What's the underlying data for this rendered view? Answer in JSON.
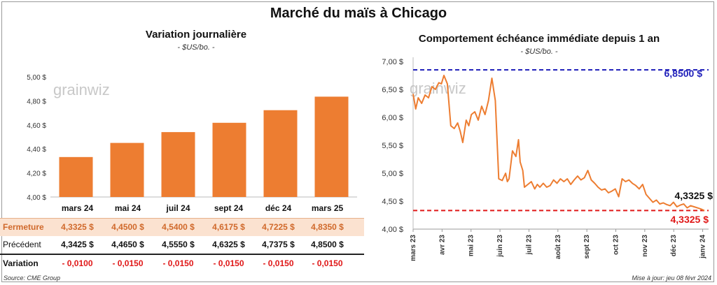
{
  "title": "Marché du maïs à Chicago",
  "left_chart": {
    "subtitle": "Variation  journalière",
    "unit": "- $US/bo. -",
    "watermark": "grainwiz"
  },
  "right_chart": {
    "subtitle": "Comportement  échéance immédiate depuis 1 an",
    "unit": "- $US/bo. -",
    "watermark": "grainwiz",
    "max_label": "6,8500 $",
    "last_label_upper": "4,3325 $",
    "last_label_lower": "4,3325 $"
  },
  "table": {
    "headers": [
      "mars 24",
      "mai 24",
      "juil 24",
      "sept 24",
      "déc 24",
      "mars 25"
    ],
    "rows": [
      {
        "label": "Fermeture",
        "values": [
          "4,3325  $",
          "4,4500  $",
          "4,5400  $",
          "4,6175  $",
          "4,7225  $",
          "4,8350  $"
        ]
      },
      {
        "label": "Précédent",
        "values": [
          "4,3425  $",
          "4,4650  $",
          "4,5550  $",
          "4,6325  $",
          "4,7375  $",
          "4,8500  $"
        ]
      },
      {
        "label": "Variation",
        "values": [
          "- 0,0100",
          "- 0,0150",
          "- 0,0150",
          "- 0,0150",
          "- 0,0150",
          "- 0,0150"
        ]
      }
    ]
  },
  "footer": {
    "source": "Source: CME Group",
    "update": "Mise à jour: jeu 08 févr 2024"
  },
  "colors": {
    "bar": "#ed7d31",
    "line": "#ed7d31",
    "max_line": "#2222bb",
    "last_line": "#e01818",
    "ferm_bg": "#fbe2d0"
  },
  "chart_data": [
    {
      "type": "bar",
      "title": "Variation  journalière",
      "ylabel": "- $US/bo. -",
      "categories": [
        "mars 24",
        "mai 24",
        "juil 24",
        "sept 24",
        "déc 24",
        "mars 25"
      ],
      "values": [
        4.3325,
        4.45,
        4.54,
        4.6175,
        4.7225,
        4.835
      ],
      "ylim": [
        4.0,
        5.0
      ],
      "yticks": [
        "4,00 $",
        "4,20 $",
        "4,40 $",
        "4,60 $",
        "4,80 $",
        "5,00 $"
      ],
      "grid": false
    },
    {
      "type": "line",
      "title": "Comportement  échéance immédiate depuis 1 an",
      "ylabel": "- $US/bo. -",
      "ylim": [
        4.0,
        7.0
      ],
      "yticks": [
        "4,00 $",
        "4,50 $",
        "5,00 $",
        "5,50 $",
        "6,00 $",
        "6,50 $",
        "7,00 $"
      ],
      "xticks": [
        "mars 23",
        "avr 23",
        "mai 23",
        "juin 23",
        "juil 23",
        "août 23",
        "sept 23",
        "oct 23",
        "nov 23",
        "déc 23",
        "janv 24"
      ],
      "xlim": [
        0,
        345
      ],
      "x": [
        0,
        3,
        6,
        10,
        14,
        18,
        22,
        26,
        30,
        33,
        36,
        40,
        44,
        48,
        52,
        55,
        58,
        62,
        65,
        68,
        72,
        76,
        80,
        84,
        88,
        92,
        96,
        100,
        104,
        108,
        110,
        112,
        116,
        120,
        123,
        125,
        128,
        130,
        134,
        138,
        142,
        145,
        148,
        152,
        156,
        160,
        164,
        168,
        172,
        176,
        180,
        184,
        188,
        192,
        196,
        200,
        204,
        208,
        212,
        216,
        220,
        224,
        228,
        232,
        236,
        240,
        244,
        248,
        252,
        256,
        260,
        264,
        268,
        272,
        276,
        280,
        284,
        288,
        292,
        296,
        300,
        304,
        308,
        312,
        316,
        320,
        324,
        328,
        332,
        336,
        340
      ],
      "y": [
        6.42,
        6.15,
        6.35,
        6.25,
        6.4,
        6.35,
        6.55,
        6.5,
        6.62,
        6.6,
        6.75,
        6.6,
        5.85,
        5.8,
        5.9,
        5.75,
        5.55,
        5.95,
        5.85,
        6.05,
        6.1,
        5.95,
        6.2,
        6.05,
        6.3,
        6.7,
        6.3,
        4.9,
        4.87,
        5.0,
        4.85,
        4.9,
        5.4,
        5.3,
        5.6,
        5.2,
        5.05,
        4.75,
        4.8,
        4.85,
        4.72,
        4.8,
        4.75,
        4.82,
        4.75,
        4.78,
        4.88,
        4.82,
        4.9,
        4.85,
        4.9,
        4.8,
        4.88,
        4.95,
        4.88,
        4.92,
        5.05,
        4.88,
        4.82,
        4.75,
        4.7,
        4.72,
        4.65,
        4.68,
        4.72,
        4.58,
        4.9,
        4.85,
        4.88,
        4.82,
        4.78,
        4.72,
        4.8,
        4.62,
        4.55,
        4.48,
        4.52,
        4.45,
        4.47,
        4.44,
        4.42,
        4.48,
        4.4,
        4.43,
        4.45,
        4.38,
        4.42,
        4.4,
        4.38,
        4.36,
        4.3325
      ],
      "reference_lines": [
        {
          "value": 6.85,
          "label": "6,8500 $"
        },
        {
          "value": 4.3325,
          "label": "4,3325 $"
        }
      ],
      "grid": false
    }
  ]
}
